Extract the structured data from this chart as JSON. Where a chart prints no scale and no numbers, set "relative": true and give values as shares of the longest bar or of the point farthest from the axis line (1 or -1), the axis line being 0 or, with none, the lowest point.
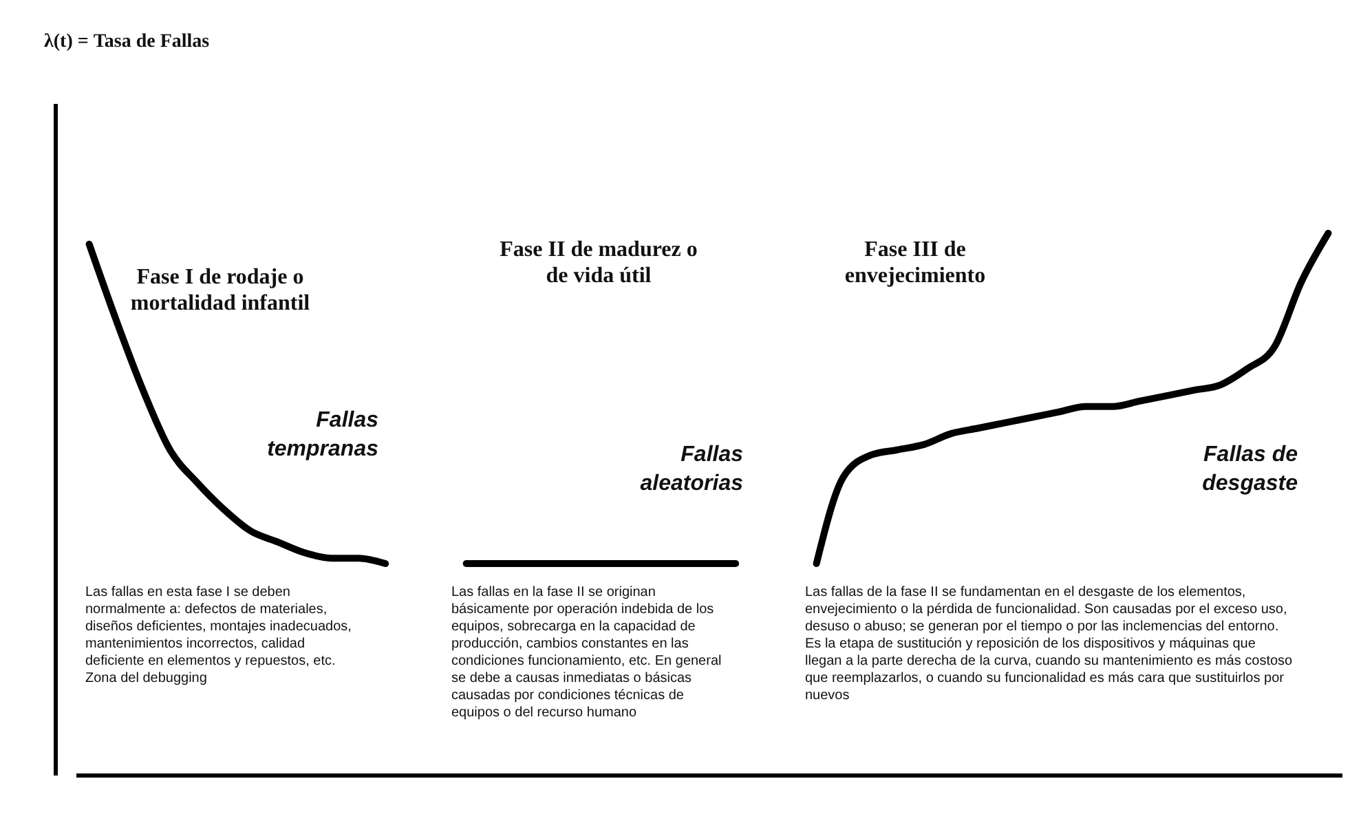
{
  "chart_data": {
    "type": "line",
    "relative": true,
    "categories": [
      null,
      null,
      null,
      null,
      null,
      null,
      null,
      null,
      null,
      null,
      null,
      null,
      null,
      null,
      null,
      null,
      null,
      null,
      null,
      null,
      null,
      null,
      null,
      null,
      null,
      null,
      null,
      null,
      null,
      null,
      null,
      null,
      null,
      null,
      null,
      null,
      null,
      null,
      null,
      null,
      null,
      null,
      null,
      null,
      null,
      null,
      null
    ],
    "series": [
      {
        "color": "#000000",
        "values": [
          0.98,
          0.84,
          0.71,
          0.6,
          0.54,
          0.49,
          0.45,
          0.43,
          0.41,
          0.4,
          0.4,
          0.39,
          null,
          null,
          null,
          null,
          null,
          null,
          null,
          null,
          null,
          null,
          null,
          null,
          null,
          null,
          null,
          null,
          null,
          null,
          null,
          null,
          null,
          null,
          null,
          null,
          null,
          null,
          null,
          null,
          null,
          null,
          null,
          null,
          null,
          null,
          null
        ]
      },
      {
        "color": "#000000",
        "values": [
          null,
          null,
          null,
          null,
          null,
          null,
          null,
          null,
          null,
          null,
          null,
          null,
          null,
          null,
          0.39,
          0.39,
          0.39,
          0.39,
          0.39,
          0.39,
          0.39,
          0.39,
          0.39,
          0.39,
          0.39,
          null,
          null,
          null,
          null,
          null,
          null,
          null,
          null,
          null,
          null,
          null,
          null,
          null,
          null,
          null,
          null,
          null,
          null,
          null,
          null,
          null,
          null
        ]
      },
      {
        "color": "#000000",
        "values": [
          null,
          null,
          null,
          null,
          null,
          null,
          null,
          null,
          null,
          null,
          null,
          null,
          null,
          null,
          null,
          null,
          null,
          null,
          null,
          null,
          null,
          null,
          null,
          null,
          null,
          null,
          null,
          0.39,
          0.55,
          0.59,
          0.6,
          0.61,
          0.63,
          0.64,
          0.65,
          0.66,
          0.67,
          0.68,
          0.68,
          0.69,
          0.7,
          0.71,
          0.72,
          0.75,
          0.79,
          0.91,
          1.0
        ]
      }
    ],
    "annotations": [
      "Fase I de rodaje o mortalidad infantil",
      "Fase II de madurez o de vida útil",
      "Fase III de envejecimiento",
      "Fallas tempranas",
      "Fallas aleatorias",
      "Fallas de desgaste",
      "Las fallas en esta fase I se deben normalmente a: defectos de materiales, diseños deficientes, montajes inadecuados, mantenimientos incorrectos, calidad deficiente en elementos y repuestos, etc. Zona del debugging",
      "Las fallas en la fase II se originan básicamente por operación indebida de los equipos, sobrecarga en la capacidad de producción, cambios constantes en las condiciones funcionamiento, etc. En general se debe a causas inmediatas o básicas causadas por condiciones técnicas de equipos o del recurso humano",
      "Las fallas de la fase II se fundamentan en el desgaste de los elementos, envejecimiento o la pérdida de funcionalidad. Son causadas por el exceso uso, desuso o abuso; se generan por el tiempo o por las inclemencias del entorno. Es la etapa de sustitución y reposición de los dispositivos y máquinas que llegan a la parte derecha de la curva, cuando su mantenimiento es más costoso que reemplazarlos, o cuando su funcionalidad es más cara que sustituirlos por nuevos",
      "λ(t) = Tasa de Fallas"
    ]
  }
}
